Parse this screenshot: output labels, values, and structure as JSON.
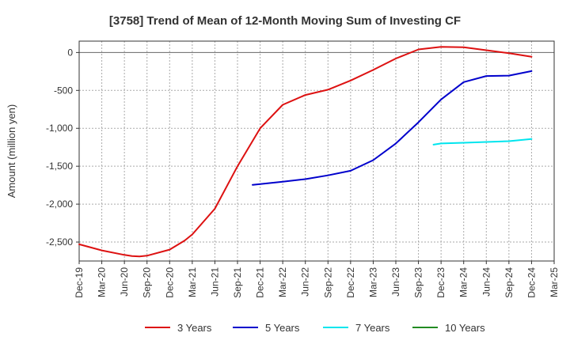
{
  "chart_data": {
    "type": "line",
    "title": "[3758]  Trend of Mean of 12-Month Moving Sum of Investing CF",
    "ylabel": "Amount (million yen)",
    "xlabel": "",
    "ylim": [
      -2750,
      150
    ],
    "y_ticks": [
      0,
      -500,
      -1000,
      -1500,
      -2000,
      -2500
    ],
    "y_tick_labels": [
      "0",
      "-500",
      "-1,000",
      "-1,500",
      "-2,000",
      "-2,500"
    ],
    "x_tick_labels": [
      "Dec-19",
      "Mar-20",
      "Jun-20",
      "Sep-20",
      "Dec-20",
      "Mar-21",
      "Jun-21",
      "Sep-21",
      "Dec-21",
      "Mar-22",
      "Jun-22",
      "Sep-22",
      "Dec-22",
      "Mar-23",
      "Jun-23",
      "Sep-23",
      "Dec-23",
      "Mar-24",
      "Jun-24",
      "Sep-24",
      "Dec-24",
      "Mar-25"
    ],
    "grid": true,
    "legend_position": "bottom",
    "series": [
      {
        "name": "3 Years",
        "color": "#dd1111",
        "points": [
          [
            "Dec-19",
            -2530
          ],
          [
            "Mar-20",
            -2610
          ],
          [
            "Jun-20",
            -2670
          ],
          [
            "Jul-20",
            -2685
          ],
          [
            "Aug-20",
            -2690
          ],
          [
            "Sep-20",
            -2680
          ],
          [
            "Dec-20",
            -2600
          ],
          [
            "Feb-21",
            -2480
          ],
          [
            "Mar-21",
            -2400
          ],
          [
            "Jun-21",
            -2060
          ],
          [
            "Sep-21",
            -1500
          ],
          [
            "Dec-21",
            -1000
          ],
          [
            "Mar-22",
            -690
          ],
          [
            "Jun-22",
            -560
          ],
          [
            "Sep-22",
            -490
          ],
          [
            "Dec-22",
            -370
          ],
          [
            "Mar-23",
            -230
          ],
          [
            "Jun-23",
            -80
          ],
          [
            "Sep-23",
            40
          ],
          [
            "Dec-23",
            75
          ],
          [
            "Mar-24",
            70
          ],
          [
            "Jun-24",
            30
          ],
          [
            "Sep-24",
            -10
          ],
          [
            "Dec-24",
            -55
          ]
        ]
      },
      {
        "name": "5 Years",
        "color": "#0000cc",
        "points": [
          [
            "Nov-21",
            -1745
          ],
          [
            "Dec-21",
            -1735
          ],
          [
            "Mar-22",
            -1705
          ],
          [
            "Jun-22",
            -1670
          ],
          [
            "Sep-22",
            -1620
          ],
          [
            "Dec-22",
            -1560
          ],
          [
            "Mar-23",
            -1420
          ],
          [
            "Jun-23",
            -1200
          ],
          [
            "Sep-23",
            -920
          ],
          [
            "Dec-23",
            -620
          ],
          [
            "Mar-24",
            -390
          ],
          [
            "Jun-24",
            -310
          ],
          [
            "Sep-24",
            -305
          ],
          [
            "Dec-24",
            -245
          ]
        ]
      },
      {
        "name": "7 Years",
        "color": "#00e5ee",
        "points": [
          [
            "Nov-23",
            -1215
          ],
          [
            "Dec-23",
            -1200
          ],
          [
            "Mar-24",
            -1190
          ],
          [
            "Jun-24",
            -1180
          ],
          [
            "Sep-24",
            -1170
          ],
          [
            "Dec-24",
            -1140
          ]
        ]
      },
      {
        "name": "10 Years",
        "color": "#228b22",
        "points": []
      }
    ]
  }
}
